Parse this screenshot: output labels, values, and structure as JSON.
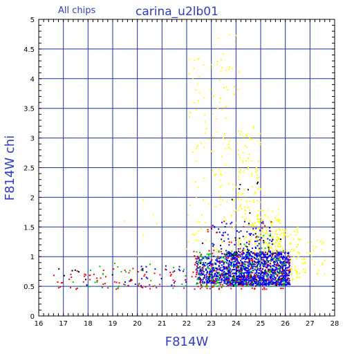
{
  "header": {
    "note": "All chips",
    "title": "carina_u2lb01"
  },
  "chart_data": {
    "type": "scatter",
    "xlabel": "F814W",
    "ylabel": "F814W chi",
    "xlim": [
      16,
      28
    ],
    "ylim": [
      0,
      5
    ],
    "x_ticks": [
      "16",
      "17",
      "18",
      "19",
      "20",
      "21",
      "22",
      "23",
      "24",
      "25",
      "26",
      "27",
      "28"
    ],
    "y_ticks": [
      "0",
      "0.5",
      "1",
      "1.5",
      "2",
      "2.5",
      "3",
      "3.5",
      "4",
      "4.5",
      "5"
    ],
    "grid": true,
    "colors": {
      "grid": "#1f2fb0",
      "axis_text": "#2a3cc8",
      "frame": "#000000",
      "yellow": "#ffff00",
      "blue": "#0000ff",
      "red": "#ff0000",
      "green": "#00cc00",
      "black": "#000000"
    },
    "series": [
      {
        "color_key": "yellow",
        "clusters": [
          {
            "n": 70,
            "x": [
              22.0,
              23.2
            ],
            "y": [
              1.0,
              4.4
            ]
          },
          {
            "n": 90,
            "x": [
              23.2,
              24.2
            ],
            "y": [
              0.9,
              4.8
            ]
          },
          {
            "n": 150,
            "x": [
              24.0,
              25.0
            ],
            "y": [
              0.8,
              3.2
            ]
          },
          {
            "n": 140,
            "x": [
              24.8,
              25.8
            ],
            "y": [
              0.7,
              1.8
            ]
          },
          {
            "n": 110,
            "x": [
              25.5,
              26.6
            ],
            "y": [
              0.6,
              1.5
            ]
          },
          {
            "n": 40,
            "x": [
              26.4,
              27.6
            ],
            "y": [
              0.7,
              1.3
            ]
          },
          {
            "n": 8,
            "x": [
              19.2,
              21.5
            ],
            "y": [
              0.6,
              2.1
            ]
          }
        ]
      },
      {
        "color_key": "blue",
        "clusters": [
          {
            "n": 1100,
            "x": [
              23.6,
              26.2
            ],
            "y": [
              0.52,
              1.08
            ]
          },
          {
            "n": 260,
            "x": [
              22.4,
              23.6
            ],
            "y": [
              0.55,
              1.0
            ]
          },
          {
            "n": 80,
            "x": [
              23.0,
              25.5
            ],
            "y": [
              1.0,
              1.6
            ]
          },
          {
            "n": 25,
            "x": [
              19.5,
              22.0
            ],
            "y": [
              0.5,
              0.85
            ]
          }
        ]
      },
      {
        "color_key": "red",
        "clusters": [
          {
            "n": 200,
            "x": [
              22.2,
              26.2
            ],
            "y": [
              0.45,
              1.1
            ]
          },
          {
            "n": 70,
            "x": [
              16.6,
              22.0
            ],
            "y": [
              0.45,
              0.8
            ]
          },
          {
            "n": 20,
            "x": [
              22.8,
              25.5
            ],
            "y": [
              1.1,
              1.6
            ]
          }
        ]
      },
      {
        "color_key": "green",
        "clusters": [
          {
            "n": 180,
            "x": [
              22.4,
              26.0
            ],
            "y": [
              0.5,
              1.1
            ]
          },
          {
            "n": 30,
            "x": [
              17.0,
              22.0
            ],
            "y": [
              0.45,
              0.9
            ]
          },
          {
            "n": 12,
            "x": [
              24.2,
              25.5
            ],
            "y": [
              1.1,
              1.4
            ]
          }
        ]
      },
      {
        "color_key": "black",
        "clusters": [
          {
            "n": 45,
            "x": [
              22.5,
              26.0
            ],
            "y": [
              0.5,
              1.3
            ]
          },
          {
            "n": 10,
            "x": [
              16.8,
              21.5
            ],
            "y": [
              0.5,
              0.8
            ]
          },
          {
            "n": 10,
            "x": [
              23.8,
              25.2
            ],
            "y": [
              1.3,
              2.6
            ]
          }
        ]
      }
    ]
  }
}
